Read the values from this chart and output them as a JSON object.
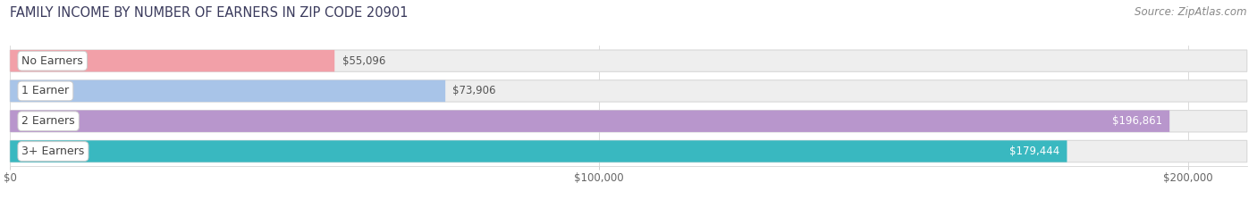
{
  "title": "FAMILY INCOME BY NUMBER OF EARNERS IN ZIP CODE 20901",
  "source": "Source: ZipAtlas.com",
  "categories": [
    "No Earners",
    "1 Earner",
    "2 Earners",
    "3+ Earners"
  ],
  "values": [
    55096,
    73906,
    196861,
    179444
  ],
  "bar_colors": [
    "#F2A0A8",
    "#A8C4E8",
    "#B896CC",
    "#39B8C0"
  ],
  "label_colors": [
    "#555555",
    "#555555",
    "#ffffff",
    "#ffffff"
  ],
  "value_labels": [
    "$55,096",
    "$73,906",
    "$196,861",
    "$179,444"
  ],
  "xmax": 210000,
  "xticks": [
    0,
    100000,
    200000
  ],
  "xticklabels": [
    "$0",
    "$100,000",
    "$200,000"
  ],
  "bg_color": "#ffffff",
  "bar_bg_color": "#eeeeee",
  "title_fontsize": 10.5,
  "source_fontsize": 8.5
}
